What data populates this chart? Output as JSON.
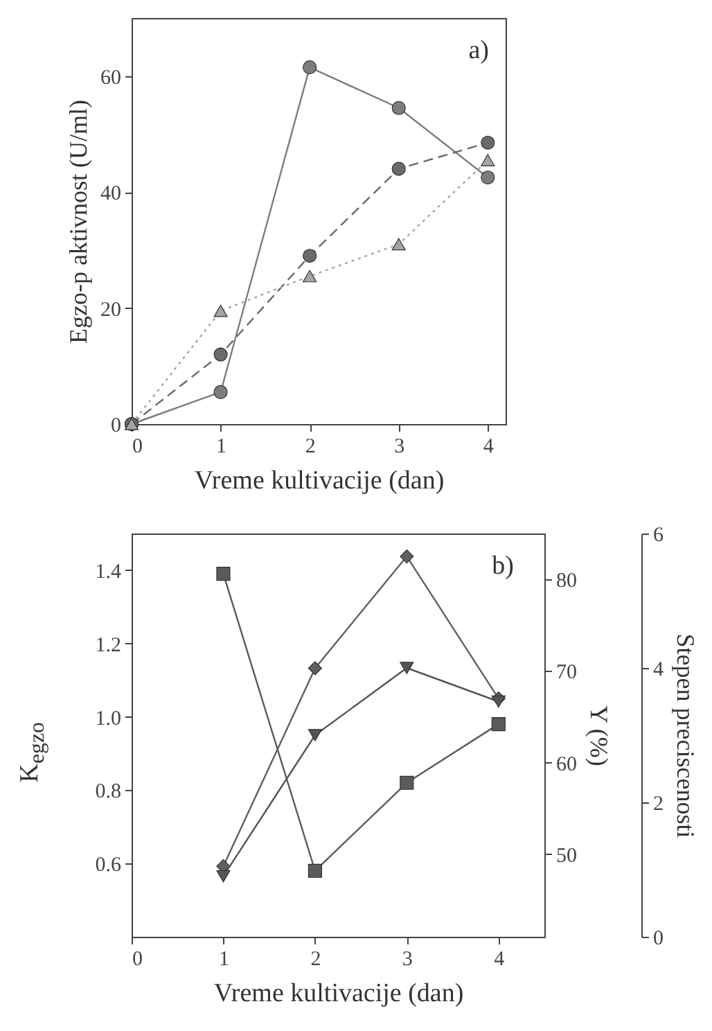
{
  "chart_data": [
    {
      "type": "line",
      "xlabel": "Vreme kultivacije (dan)",
      "ylabel": "Egzo-p aktivnost (U/ml)",
      "annotations": [
        "a)"
      ],
      "xlim": [
        0,
        4.2
      ],
      "xticks": [
        0,
        1,
        2,
        3,
        4
      ],
      "ylim": [
        0,
        70
      ],
      "yticks": [
        0,
        20,
        40,
        60
      ],
      "x": [
        0,
        1,
        2,
        3,
        4
      ],
      "series": [
        {
          "color": "#7d7d7d",
          "marker": "circle",
          "line_style": "solid",
          "values": [
            0,
            5.5,
            61.5,
            54.5,
            42.5
          ]
        },
        {
          "color": "#6a6a6a",
          "marker": "circle",
          "line_style": "dashed",
          "values": [
            0,
            12,
            29,
            44,
            48.5
          ]
        },
        {
          "color": "#a5a5a5",
          "marker": "triangle",
          "line_style": "dotted",
          "values": [
            0,
            19.5,
            25.5,
            31,
            45.5
          ]
        }
      ]
    },
    {
      "type": "line",
      "xlabel": "Vreme kultivacije (dan)",
      "ylabel": "K$_{egzo}$",
      "y2label": "Y (%)",
      "y3label": "Stepen preciscenosti",
      "annotations": [
        "b)"
      ],
      "xlim": [
        0,
        4.5
      ],
      "xticks": [
        0,
        1,
        2,
        3,
        4
      ],
      "ylim": [
        0.4,
        1.5
      ],
      "yticks": [
        0.6,
        0.8,
        {
          "value": 1.0,
          "label": "1.0"
        },
        1.2,
        1.4
      ],
      "y2lim": [
        41,
        85
      ],
      "y2ticks": [
        50,
        60,
        70,
        80
      ],
      "y3lim": [
        0,
        6
      ],
      "y3ticks": [
        0,
        2,
        4,
        6
      ],
      "x": [
        1,
        2,
        3,
        4
      ],
      "series": [
        {
          "color": "#5a5a5a",
          "marker": "square",
          "line_style": "solid",
          "values": [
            1.39,
            0.58,
            0.82,
            0.98
          ]
        },
        {
          "color": "#606060",
          "marker": "diamond",
          "line_style": "solid",
          "axis": "y2",
          "values": [
            48.7,
            70.3,
            82.5,
            67
          ]
        },
        {
          "color": "#555555",
          "marker": "triangle-down",
          "line_style": "solid",
          "axis": "y3",
          "values": [
            0.9,
            3.0,
            4.0,
            3.5
          ]
        }
      ]
    }
  ]
}
